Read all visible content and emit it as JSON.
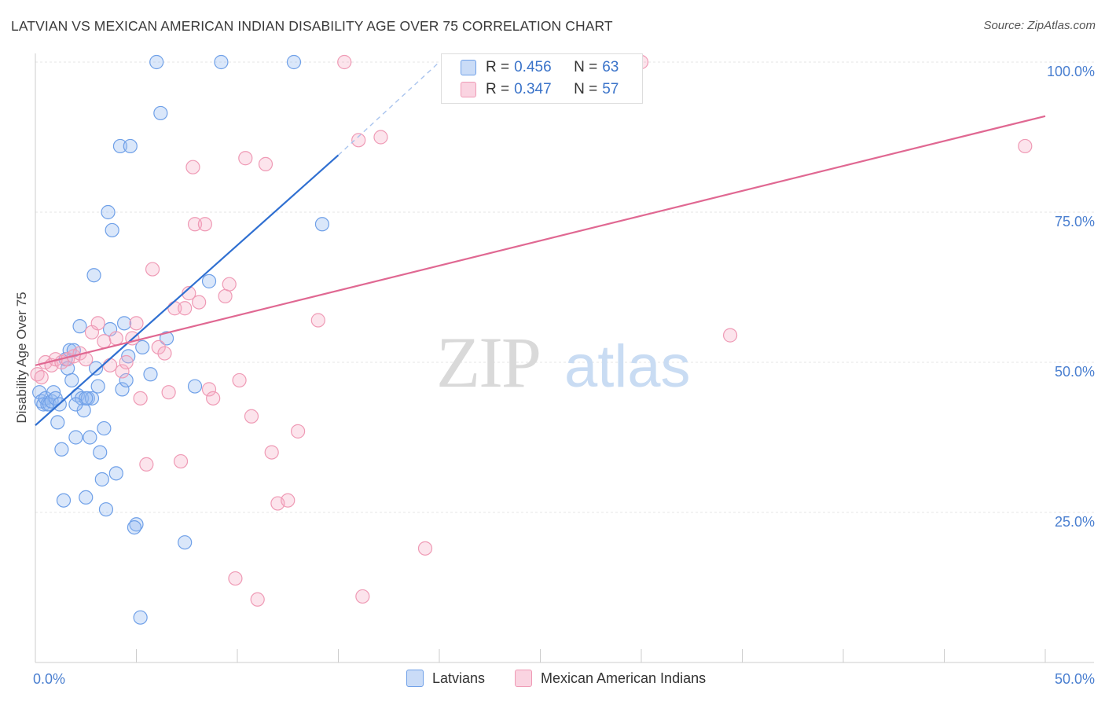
{
  "chart_data": {
    "type": "scatter",
    "title": "LATVIAN VS MEXICAN AMERICAN INDIAN DISABILITY AGE OVER 75 CORRELATION CHART",
    "source": "Source: ZipAtlas.com",
    "ylabel": "Disability Age Over 75",
    "xlabel": "",
    "xlim": [
      0,
      50
    ],
    "ylim": [
      0,
      105
    ],
    "x_tick_labels": [
      "0.0%",
      "50.0%"
    ],
    "y_ticks": [
      25,
      50,
      75,
      100
    ],
    "y_tick_labels": [
      "25.0%",
      "50.0%",
      "75.0%",
      "100.0%"
    ],
    "grid": true,
    "watermark": "ZIPatlas",
    "legend_position": "top-center",
    "stats": [
      {
        "label": "R =",
        "r": "0.456",
        "n_label": "N =",
        "n": "63"
      },
      {
        "label": "R =",
        "r": "0.347",
        "n_label": "N =",
        "n": "57"
      }
    ],
    "series": [
      {
        "name": "Latvians",
        "color": "#6fa0e8",
        "fill": "rgba(150,185,240,0.35)",
        "line_color": "#2f6fd1",
        "trend": {
          "x0": 0,
          "y0": 39.5,
          "x1": 15,
          "y1": 84.5,
          "dash_to_x": 20,
          "dash_to_y": 100
        },
        "points": [
          [
            0.2,
            45
          ],
          [
            0.3,
            43.5
          ],
          [
            0.4,
            43
          ],
          [
            0.5,
            44
          ],
          [
            0.6,
            43
          ],
          [
            0.7,
            43
          ],
          [
            0.8,
            43.5
          ],
          [
            0.9,
            45
          ],
          [
            1.0,
            44
          ],
          [
            1.1,
            40
          ],
          [
            1.2,
            43
          ],
          [
            1.3,
            35.5
          ],
          [
            1.4,
            27
          ],
          [
            1.5,
            50.5
          ],
          [
            1.6,
            49
          ],
          [
            1.7,
            52
          ],
          [
            1.8,
            47
          ],
          [
            1.9,
            52
          ],
          [
            2.0,
            37.5
          ],
          [
            2.1,
            44.5
          ],
          [
            2.2,
            56
          ],
          [
            2.3,
            44
          ],
          [
            2.4,
            42
          ],
          [
            2.5,
            27.5
          ],
          [
            2.6,
            44
          ],
          [
            2.7,
            37.5
          ],
          [
            2.8,
            44
          ],
          [
            2.9,
            64.5
          ],
          [
            2.5,
            44
          ],
          [
            2.0,
            43
          ],
          [
            3.0,
            49
          ],
          [
            3.1,
            46
          ],
          [
            3.2,
            35
          ],
          [
            3.3,
            30.5
          ],
          [
            3.4,
            39
          ],
          [
            3.5,
            25.5
          ],
          [
            3.6,
            75
          ],
          [
            3.7,
            55.5
          ],
          [
            3.8,
            72
          ],
          [
            4.0,
            31.5
          ],
          [
            4.2,
            86
          ],
          [
            4.3,
            45.5
          ],
          [
            4.4,
            56.5
          ],
          [
            4.5,
            47
          ],
          [
            4.6,
            51
          ],
          [
            4.7,
            86
          ],
          [
            5.0,
            23
          ],
          [
            4.9,
            22.5
          ],
          [
            5.2,
            7.5
          ],
          [
            5.3,
            52.5
          ],
          [
            5.7,
            48
          ],
          [
            6.0,
            100
          ],
          [
            6.2,
            91.5
          ],
          [
            6.5,
            54
          ],
          [
            7.4,
            20
          ],
          [
            7.9,
            46
          ],
          [
            8.6,
            63.5
          ],
          [
            9.2,
            100
          ],
          [
            12.8,
            100
          ],
          [
            14.2,
            73
          ]
        ]
      },
      {
        "name": "Mexican American Indians",
        "color": "#ef9ab5",
        "fill": "rgba(245,170,195,0.32)",
        "line_color": "#e06892",
        "trend": {
          "x0": 0,
          "y0": 49.5,
          "x1": 50,
          "y1": 91
        },
        "points": [
          [
            0.1,
            48
          ],
          [
            0.3,
            47.5
          ],
          [
            0.5,
            50
          ],
          [
            0.8,
            49.5
          ],
          [
            1.0,
            50.5
          ],
          [
            1.3,
            50
          ],
          [
            1.6,
            50.5
          ],
          [
            1.9,
            51
          ],
          [
            2.2,
            51.5
          ],
          [
            2.5,
            50.5
          ],
          [
            2.8,
            55
          ],
          [
            3.1,
            56.5
          ],
          [
            3.4,
            53.5
          ],
          [
            3.7,
            49.5
          ],
          [
            4.0,
            54
          ],
          [
            4.3,
            48.5
          ],
          [
            4.5,
            50
          ],
          [
            4.8,
            54
          ],
          [
            5.0,
            56.5
          ],
          [
            5.2,
            44
          ],
          [
            5.5,
            33
          ],
          [
            5.8,
            65.5
          ],
          [
            6.1,
            52.5
          ],
          [
            6.4,
            51.5
          ],
          [
            6.6,
            45
          ],
          [
            6.9,
            59
          ],
          [
            7.2,
            33.5
          ],
          [
            7.4,
            59
          ],
          [
            7.6,
            61.5
          ],
          [
            7.8,
            82.5
          ],
          [
            7.9,
            73
          ],
          [
            8.1,
            60
          ],
          [
            8.4,
            73
          ],
          [
            8.6,
            45.5
          ],
          [
            8.8,
            44
          ],
          [
            9.4,
            61
          ],
          [
            9.6,
            63
          ],
          [
            9.9,
            14
          ],
          [
            10.1,
            47
          ],
          [
            10.4,
            84
          ],
          [
            10.7,
            41
          ],
          [
            11.0,
            10.5
          ],
          [
            11.4,
            83
          ],
          [
            11.7,
            35
          ],
          [
            12.0,
            26.5
          ],
          [
            12.5,
            27
          ],
          [
            13.0,
            38.5
          ],
          [
            14.0,
            57
          ],
          [
            15.3,
            100
          ],
          [
            16.0,
            87
          ],
          [
            16.2,
            11
          ],
          [
            17.1,
            87.5
          ],
          [
            19.3,
            19
          ],
          [
            30.0,
            100
          ],
          [
            34.4,
            54.5
          ],
          [
            49.0,
            86
          ]
        ]
      }
    ]
  }
}
